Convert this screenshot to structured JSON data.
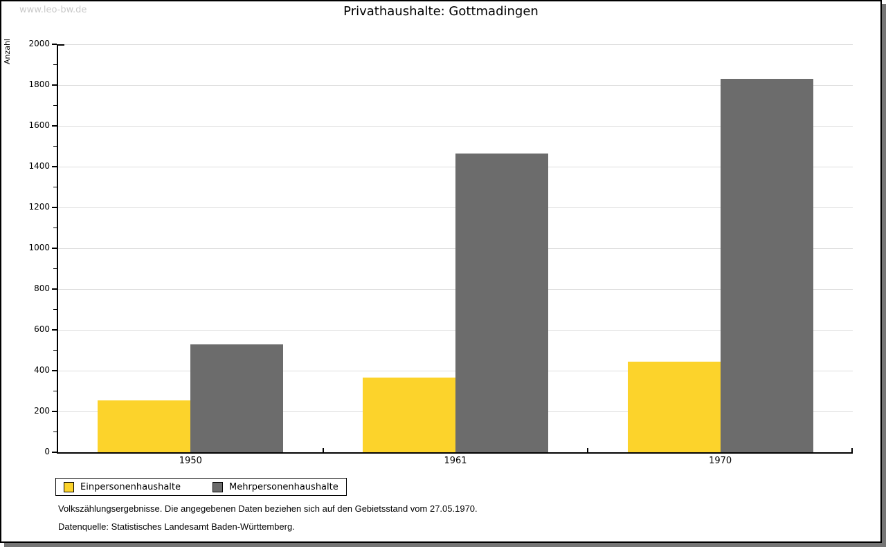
{
  "window": {
    "watermark": "www.leo-bw.de"
  },
  "chart_data": {
    "type": "bar",
    "title": "Privathaushalte: Gottmadingen",
    "ylabel": "Anzahl",
    "xlabel": "",
    "categories": [
      "1950",
      "1961",
      "1970"
    ],
    "series": [
      {
        "name": "Einpersonenhaushalte",
        "color": "#fcd32b",
        "values": [
          255,
          365,
          445
        ]
      },
      {
        "name": "Mehrpersonenhaushalte",
        "color": "#6c6c6c",
        "values": [
          530,
          1465,
          1830
        ]
      }
    ],
    "ylim": [
      0,
      2000
    ],
    "ytick_major": 200,
    "ytick_minor": 100,
    "grid": true,
    "legend_position": "bottom-left",
    "bar_color_yellow": "#fcd32b",
    "bar_color_gray": "#6c6c6c"
  },
  "footer": {
    "note": "Volkszählungsergebnisse. Die angegebenen Daten beziehen sich auf den Gebietsstand vom 27.05.1970.",
    "source": "Datenquelle: Statistisches Landesamt Baden-Württemberg."
  }
}
